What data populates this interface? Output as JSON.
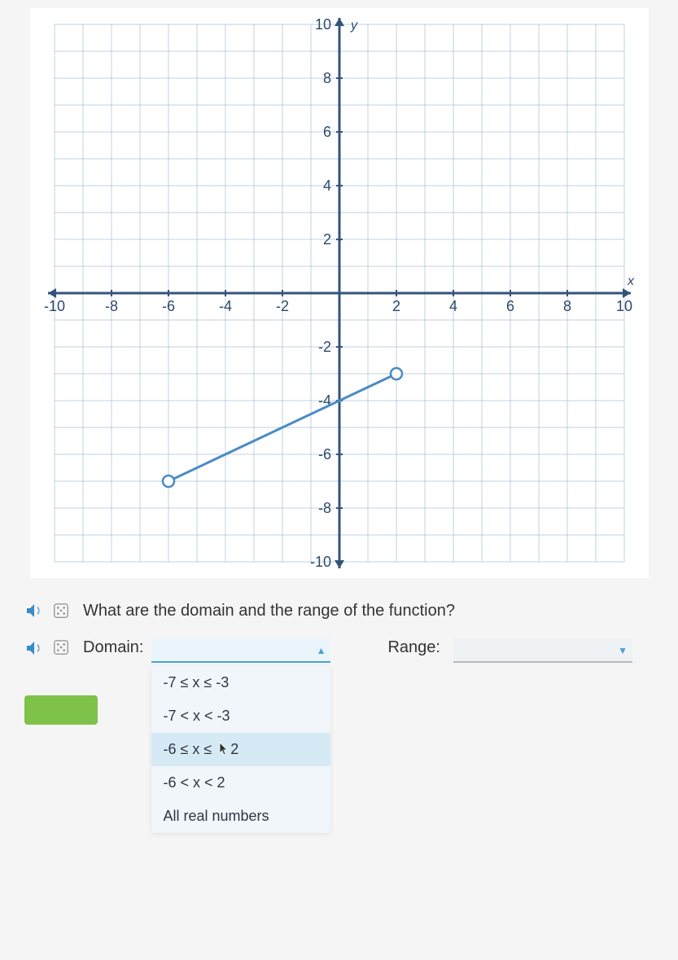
{
  "chart": {
    "type": "line",
    "xlim": [
      -10,
      10
    ],
    "ylim": [
      -10,
      10
    ],
    "xtick_step": 2,
    "ytick_step": 2,
    "x_axis_label": "x",
    "y_axis_label": "y",
    "xticks": [
      -10,
      -8,
      -6,
      -4,
      -2,
      2,
      4,
      6,
      8,
      10
    ],
    "yticks": [
      -10,
      -8,
      -6,
      -4,
      -2,
      2,
      4,
      6,
      8,
      10
    ],
    "grid_color": "#9bb5d0",
    "axis_color": "#33547a",
    "background_color": "#ffffff",
    "tick_label_color": "#2c4a6b",
    "tick_label_fontsize": 18,
    "line": {
      "points": [
        [
          -6,
          -7
        ],
        [
          2,
          -3
        ]
      ],
      "color": "#4a8bc4",
      "width": 3,
      "endpoint_marker": "open-circle",
      "marker_size": 7,
      "marker_fill": "#ffffff",
      "marker_stroke": "#4a8bc4"
    }
  },
  "question": {
    "text": "What are the domain and the range of the function?"
  },
  "domain_section": {
    "label": "Domain:",
    "selected": "",
    "range_label": "Range:",
    "options": [
      "-7 ≤ x ≤ -3",
      "-7 < x < -3",
      "-6 ≤ x ≤ 2",
      "-6 < x < 2",
      "All real numbers"
    ],
    "highlighted_index": 2
  }
}
